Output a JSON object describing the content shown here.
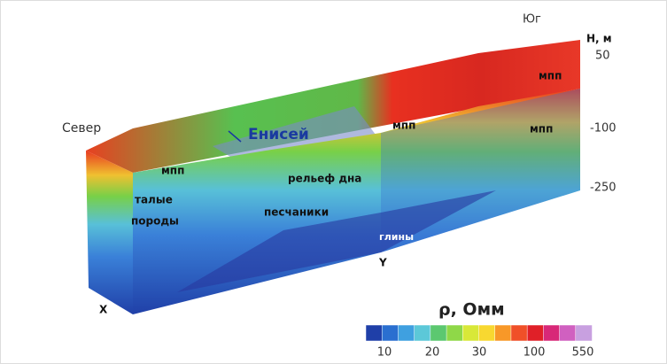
{
  "labels": {
    "north": "Север",
    "south": "Юг",
    "river": "Енисей",
    "bottom_relief": "рельеф дна",
    "mpp": [
      "мпп",
      "мпп",
      "мпп",
      "мпп"
    ],
    "thawed_1": "талые",
    "thawed_2": "породы",
    "sandstones": "песчаники",
    "clays": "глины",
    "x_point": "X",
    "y_point": "Y"
  },
  "depth_axis": {
    "title": "H, м",
    "ticks": [
      "50",
      "-100",
      "-250"
    ]
  },
  "colorbar": {
    "title": "ρ, Омм",
    "ticks": [
      "10",
      "20",
      "30",
      "100",
      "550"
    ],
    "colors": [
      "#1f3fa8",
      "#2a6fd0",
      "#3fa0e0",
      "#5cc8d8",
      "#5cc870",
      "#8fd848",
      "#d8e838",
      "#f8d830",
      "#f89828",
      "#f05028",
      "#e02028",
      "#d82878",
      "#d060c0",
      "#c8a0e0"
    ]
  }
}
